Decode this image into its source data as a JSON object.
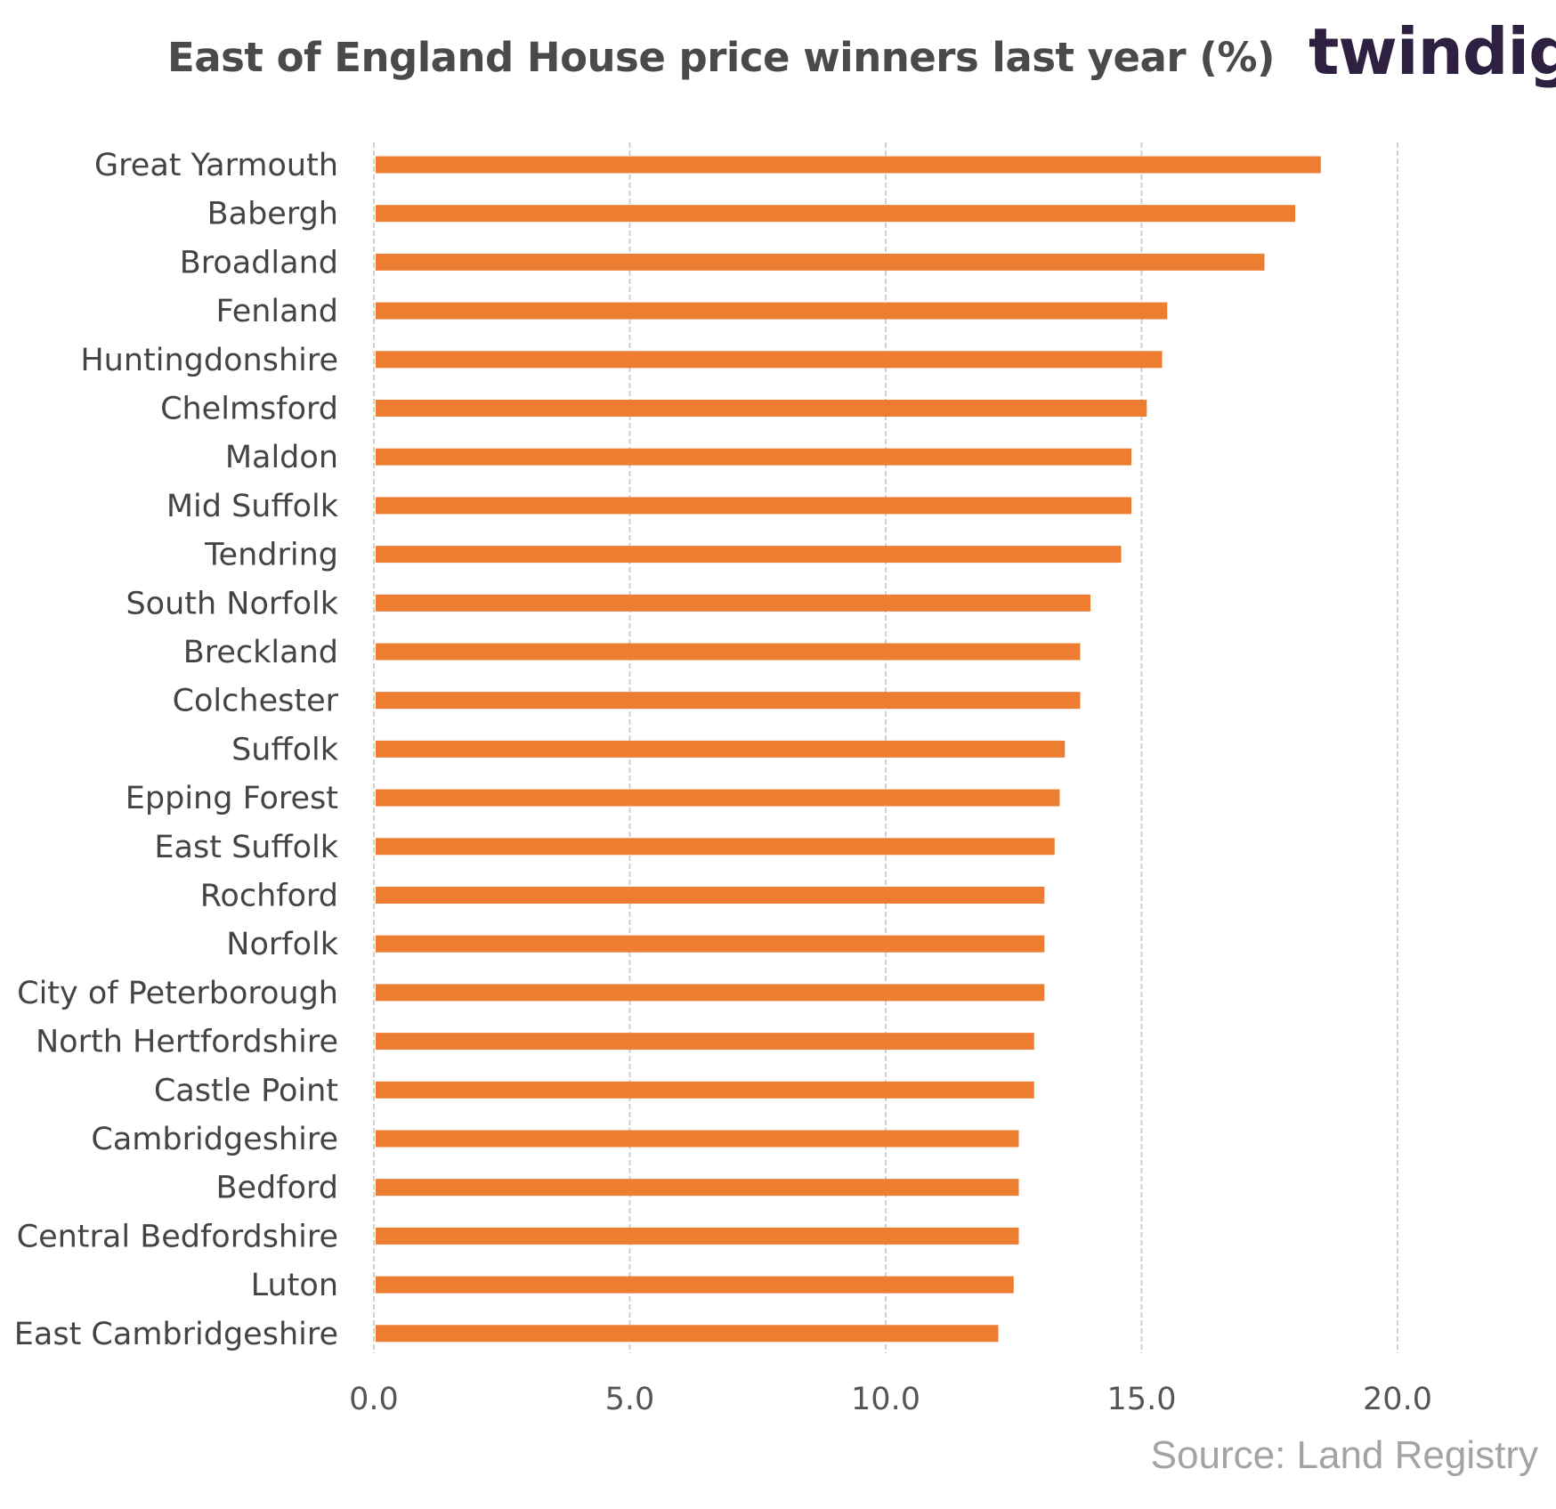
{
  "brand": {
    "logo_text": "twindig",
    "accent_color": "#ed7d31",
    "dark_color": "#2e2040"
  },
  "source": "Source: Land Registry",
  "chart_data": {
    "type": "bar",
    "orientation": "horizontal",
    "title": "East of England  House price  winners last year (%)",
    "categories": [
      "Great Yarmouth",
      "Babergh",
      "Broadland",
      "Fenland",
      "Huntingdonshire",
      "Chelmsford",
      "Maldon",
      "Mid Suffolk",
      "Tendring",
      "South Norfolk",
      "Breckland",
      "Colchester",
      "Suffolk",
      "Epping Forest",
      "East Suffolk",
      "Rochford",
      "Norfolk",
      "City of Peterborough",
      "North Hertfordshire",
      "Castle Point",
      "Cambridgeshire",
      "Bedford",
      "Central Bedfordshire",
      "Luton",
      "East Cambridgeshire"
    ],
    "values": [
      18.5,
      18.0,
      17.4,
      15.5,
      15.4,
      15.1,
      14.8,
      14.8,
      14.6,
      14.0,
      13.8,
      13.8,
      13.5,
      13.4,
      13.3,
      13.1,
      13.1,
      13.1,
      12.9,
      12.9,
      12.6,
      12.6,
      12.6,
      12.5,
      12.2
    ],
    "xlim": [
      0,
      20
    ],
    "x_ticks": [
      0,
      5,
      10,
      15,
      20
    ],
    "x_tick_labels": [
      "0.0",
      "5.0",
      "10.0",
      "15.0",
      "20.0"
    ],
    "grid": true,
    "bar_color": "#ed7d31",
    "grid_color": "#d0d0d0"
  }
}
